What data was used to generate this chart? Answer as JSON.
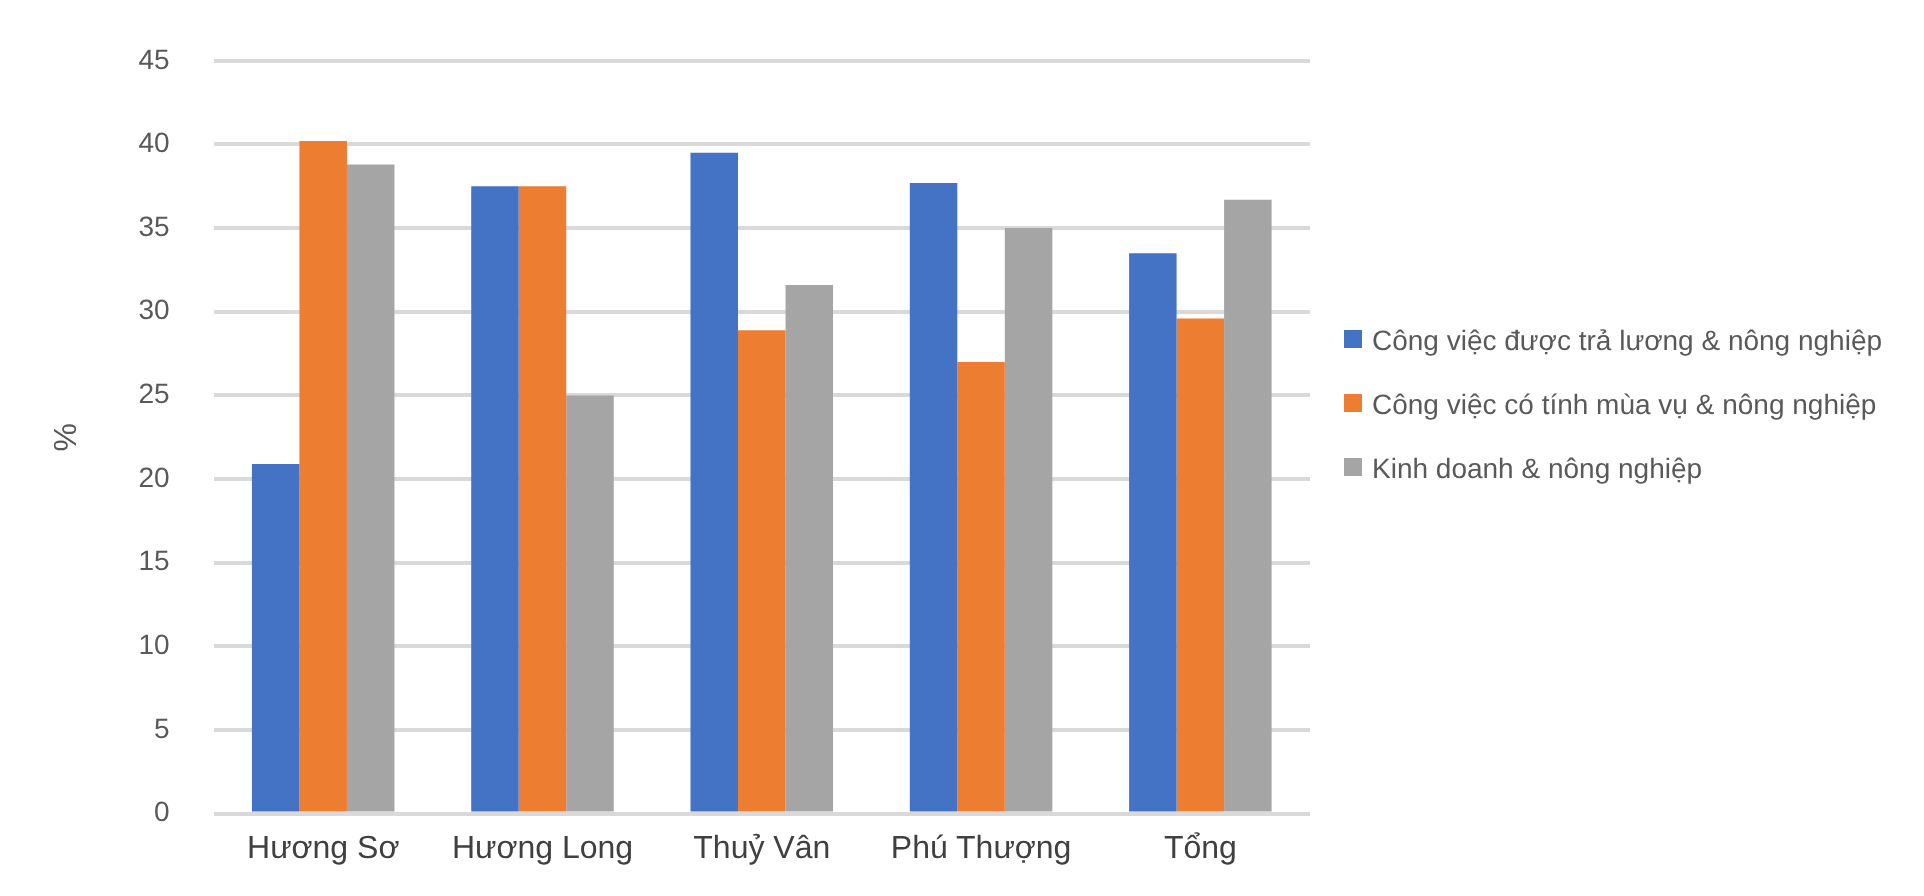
{
  "chart_data": {
    "type": "bar",
    "ylabel": "%",
    "categories": [
      "Hương Sơ",
      "Hương Long",
      "Thuỷ Vân",
      "Phú Thượng",
      "Tổng"
    ],
    "series": [
      {
        "name": "Công việc được trả lương  & nông nghiệp",
        "color": "#4472c4",
        "values": [
          20.9,
          37.5,
          39.5,
          37.7,
          33.5
        ]
      },
      {
        "name": "Công việc có tính mùa vụ & nông nghiệp",
        "color": "#ed7d31",
        "values": [
          40.2,
          37.5,
          28.9,
          27.0,
          29.6
        ]
      },
      {
        "name": "Kinh doanh & nông nghiệp",
        "color": "#a5a5a5",
        "values": [
          38.8,
          25.0,
          31.6,
          35.0,
          36.7
        ]
      }
    ],
    "ylim": [
      0,
      45
    ],
    "yticks": [
      0,
      5,
      10,
      15,
      20,
      25,
      30,
      35,
      40,
      45
    ],
    "grid": "y",
    "legend": "right"
  }
}
